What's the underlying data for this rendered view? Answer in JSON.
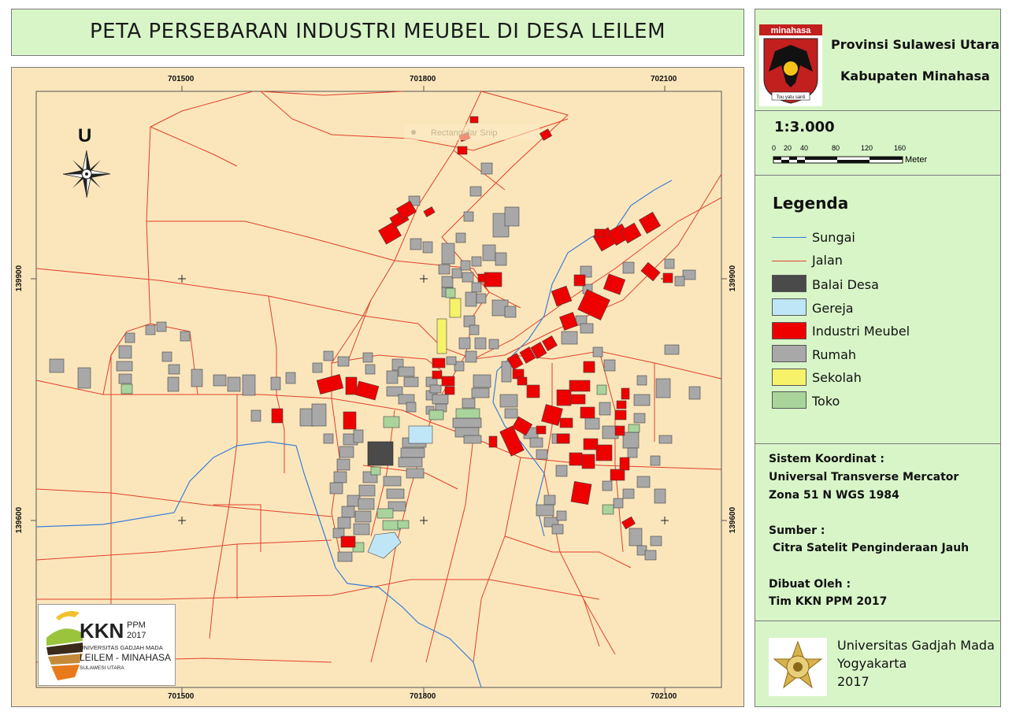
{
  "title": "PETA PERSEBARAN INDUSTRI MEUBEL DI DESA LEILEM",
  "province": "Provinsi Sulawesi Utara",
  "regency": "Kabupaten Minahasa",
  "emblem": {
    "label": "minahasa",
    "motto": "Tou yatu santi",
    "icon": "minahasa-emblem-icon"
  },
  "scale": {
    "ratio": "1:3.000",
    "ticks": [
      "0",
      "20",
      "40",
      "80",
      "120",
      "160"
    ],
    "unit": "Meter"
  },
  "grid": {
    "x_labels": [
      "701500",
      "701800",
      "702100"
    ],
    "y_labels": [
      "139900",
      "139600"
    ]
  },
  "north_label": "U",
  "ghost_text": "Rectangular Snip",
  "legend": {
    "title": "Legenda",
    "items": [
      {
        "label": "Sungai",
        "kind": "line",
        "color": "#3a7fd6"
      },
      {
        "label": "Jalan",
        "kind": "line",
        "color": "#e0402a"
      },
      {
        "label": "Balai Desa",
        "kind": "fill",
        "color": "#4a4a4a"
      },
      {
        "label": "Gereja",
        "kind": "fill",
        "color": "#bfe6f7"
      },
      {
        "label": "Industri Meubel",
        "kind": "fill",
        "color": "#ee0000"
      },
      {
        "label": "Rumah",
        "kind": "fill",
        "color": "#a8a8a8"
      },
      {
        "label": "Sekolah",
        "kind": "fill",
        "color": "#f6f26a"
      },
      {
        "label": "Toko",
        "kind": "fill",
        "color": "#a9d49b"
      }
    ]
  },
  "info": {
    "coord_heading": "Sistem Koordinat :",
    "coord_line1": "Universal Transverse Mercator",
    "coord_line2": "Zona 51 N WGS 1984",
    "source_heading": "Sumber :",
    "source_line": "Citra Satelit Penginderaan Jauh",
    "author_heading": "Dibuat Oleh :",
    "author_line": "Tim KKN PPM 2017"
  },
  "university": {
    "name": "Universitas Gadjah Mada",
    "city": "Yogyakarta",
    "year": "2017",
    "icon": "ugm-emblem-icon"
  },
  "kkn_logo": {
    "kkn": "KKN",
    "ppm": "PPM",
    "year": "2017",
    "univ": "UNIVERSITAS GADJAH MADA",
    "location": "LEILEM - MINAHASA",
    "region": "SULAWESI UTARA"
  }
}
